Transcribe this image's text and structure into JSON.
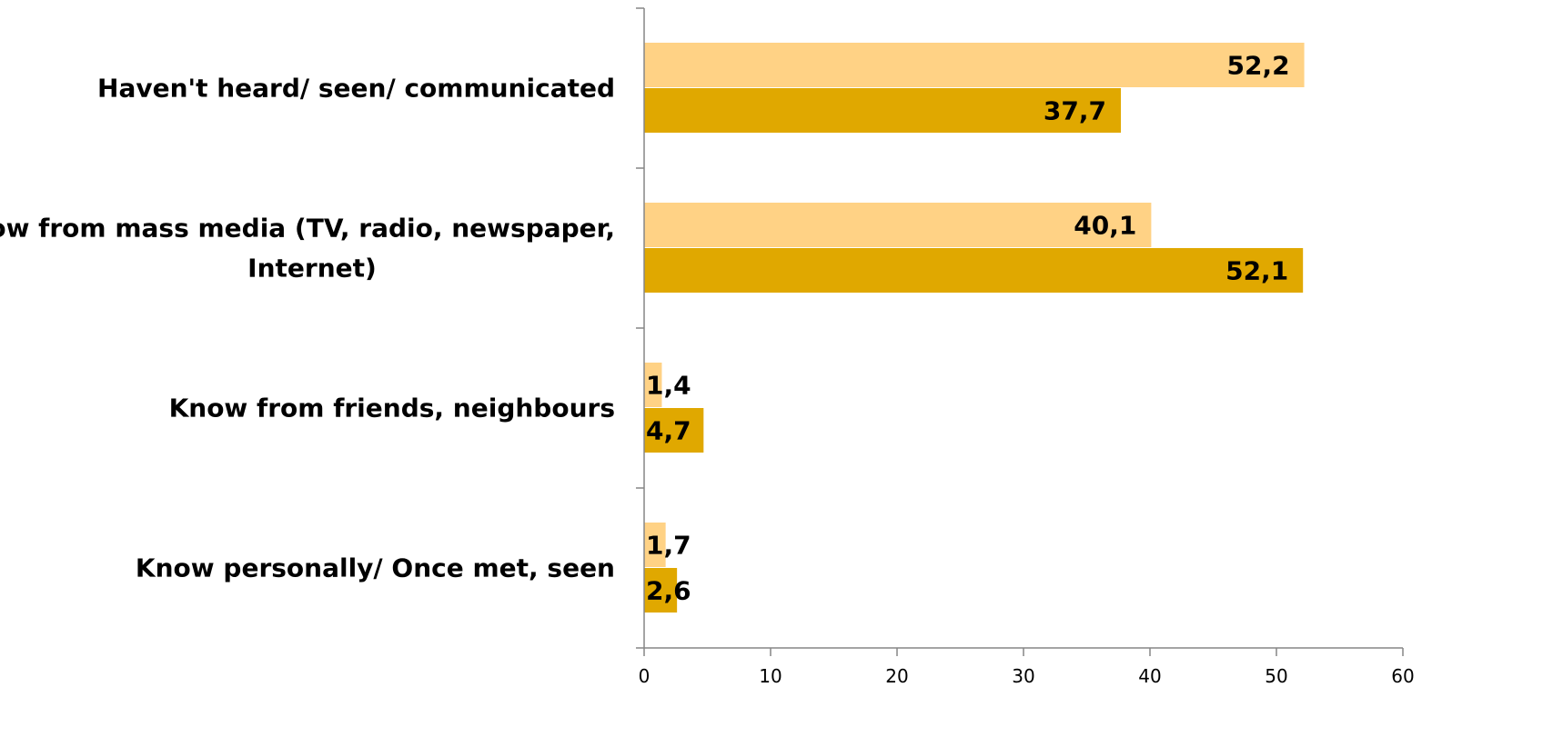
{
  "chart_data": {
    "type": "bar",
    "orientation": "horizontal",
    "categories": [
      [
        "Haven't heard/ seen/ communicated"
      ],
      [
        "Know from mass media (TV, radio, newspaper,",
        "Internet)"
      ],
      [
        "Know from friends, neighbours"
      ],
      [
        "Know personally/ Once met, seen"
      ]
    ],
    "series": [
      {
        "color": "#FFD285",
        "values": [
          52.2,
          40.1,
          1.4,
          1.7
        ],
        "labels": [
          "52,2",
          "40,1",
          "1,4",
          "1,7"
        ]
      },
      {
        "color": "#E0A800",
        "values": [
          37.7,
          52.1,
          4.7,
          2.6
        ],
        "labels": [
          "37,7",
          "52,1",
          "4,7",
          "2,6"
        ]
      }
    ],
    "xlim": [
      0,
      60
    ],
    "xticks": [
      0,
      10,
      20,
      30,
      40,
      50,
      60
    ],
    "xtick_labels": [
      "0",
      "10",
      "20",
      "30",
      "40",
      "50",
      "60"
    ],
    "title": "",
    "xlabel": "",
    "ylabel": "",
    "grid": false,
    "legend": "none"
  }
}
